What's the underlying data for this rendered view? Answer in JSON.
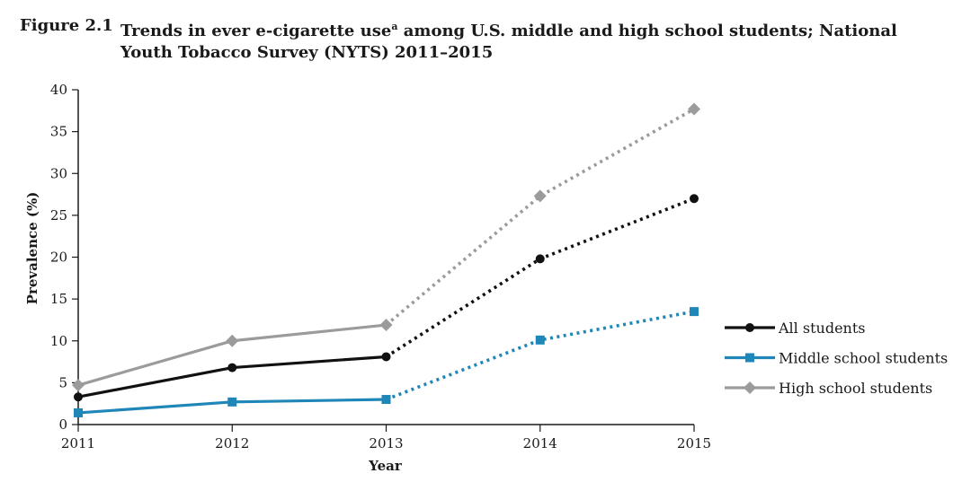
{
  "figure": {
    "number": "Figure 2.1",
    "title_main": "Trends in ever e-cigarette use",
    "title_sup": "a",
    "title_rest": " among U.S. middle and high school students; National Youth Tobacco Survey (NYTS) 2011–2015"
  },
  "chart_data": {
    "type": "line",
    "title": "Trends in ever e-cigarette use among U.S. middle and high school students; National Youth Tobacco Survey (NYTS) 2011–2015",
    "xlabel": "Year",
    "ylabel": "Prevalence (%)",
    "x": [
      2011,
      2012,
      2013,
      2014,
      2015
    ],
    "x_tick_labels": [
      "2011",
      "2012",
      "2013",
      "2014",
      "2015"
    ],
    "ylim": [
      0,
      40
    ],
    "y_ticks": [
      0,
      5,
      10,
      15,
      20,
      25,
      30,
      35,
      40
    ],
    "y_tick_labels": [
      "0",
      "5",
      "10",
      "15",
      "20",
      "25",
      "30",
      "35",
      "40"
    ],
    "grid": false,
    "legend_position": "right",
    "solid_until": 2013,
    "dotted_from": 2013,
    "series": [
      {
        "name": "All students",
        "values": [
          3.3,
          6.8,
          8.1,
          19.8,
          27.0
        ],
        "color": "#111111",
        "marker": "circle"
      },
      {
        "name": "Middle school students",
        "values": [
          1.4,
          2.7,
          3.0,
          10.1,
          13.5
        ],
        "color": "#1f86b8",
        "marker": "square"
      },
      {
        "name": "High school students",
        "values": [
          4.7,
          10.0,
          11.9,
          27.3,
          37.7
        ],
        "color": "#9b9b9b",
        "marker": "diamond"
      }
    ]
  }
}
